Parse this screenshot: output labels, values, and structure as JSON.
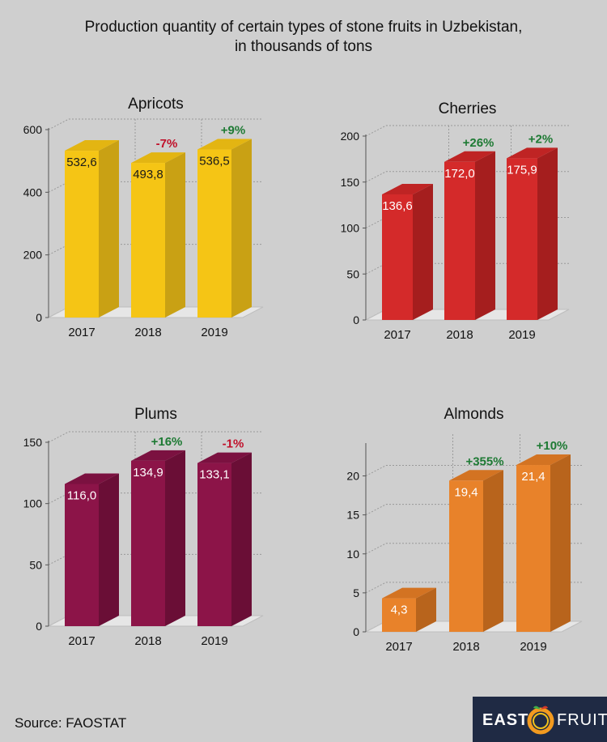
{
  "title": {
    "line1": "Production quantity of certain types of stone fruits in Uzbekistan,",
    "line2": "in thousands of tons"
  },
  "source": "Source: FAOSTAT",
  "logo": {
    "left": "EAST",
    "right": "FRUIT"
  },
  "colors": {
    "positive": "#1e7a34",
    "negative": "#c0102a"
  },
  "chart_data": [
    {
      "type": "bar",
      "title": "Apricots",
      "categories": [
        "2017",
        "2018",
        "2019"
      ],
      "values": [
        532.6,
        493.8,
        536.5
      ],
      "value_labels": [
        "532,6",
        "493,8",
        "536,5"
      ],
      "changes": [
        "",
        "-7%",
        "+9%"
      ],
      "yticks": [
        0,
        200,
        400,
        600
      ],
      "ylim": [
        0,
        600
      ],
      "color": "#f5c515",
      "color_side": "#c9a114",
      "color_top": "#e3b512"
    },
    {
      "type": "bar",
      "title": "Cherries",
      "categories": [
        "2017",
        "2018",
        "2019"
      ],
      "values": [
        136.6,
        172.0,
        175.9
      ],
      "value_labels": [
        "136,6",
        "172,0",
        "175,9"
      ],
      "changes": [
        "",
        "+26%",
        "+2%"
      ],
      "yticks": [
        0,
        50,
        100,
        150,
        200
      ],
      "ylim": [
        0,
        200
      ],
      "color": "#d42a2a",
      "color_side": "#a51e1e",
      "color_top": "#bf2424"
    },
    {
      "type": "bar",
      "title": "Plums",
      "categories": [
        "2017",
        "2018",
        "2019"
      ],
      "values": [
        116.0,
        134.9,
        133.1
      ],
      "value_labels": [
        "116,0",
        "134,9",
        "133,1"
      ],
      "changes": [
        "",
        "+16%",
        "-1%"
      ],
      "yticks": [
        0,
        50,
        100,
        150
      ],
      "ylim": [
        0,
        150
      ],
      "color": "#8c1448",
      "color_side": "#6a0e36",
      "color_top": "#7b1140"
    },
    {
      "type": "bar",
      "title": "Almonds",
      "categories": [
        "2017",
        "2018",
        "2019"
      ],
      "values": [
        4.3,
        19.4,
        21.4
      ],
      "value_labels": [
        "4,3",
        "19,4",
        "21,4"
      ],
      "changes": [
        "",
        "+355%",
        "+10%"
      ],
      "yticks": [
        0,
        5,
        10,
        15,
        20
      ],
      "ylim": [
        0,
        24
      ],
      "color": "#e8822a",
      "color_side": "#b8641c",
      "color_top": "#d37322"
    }
  ]
}
